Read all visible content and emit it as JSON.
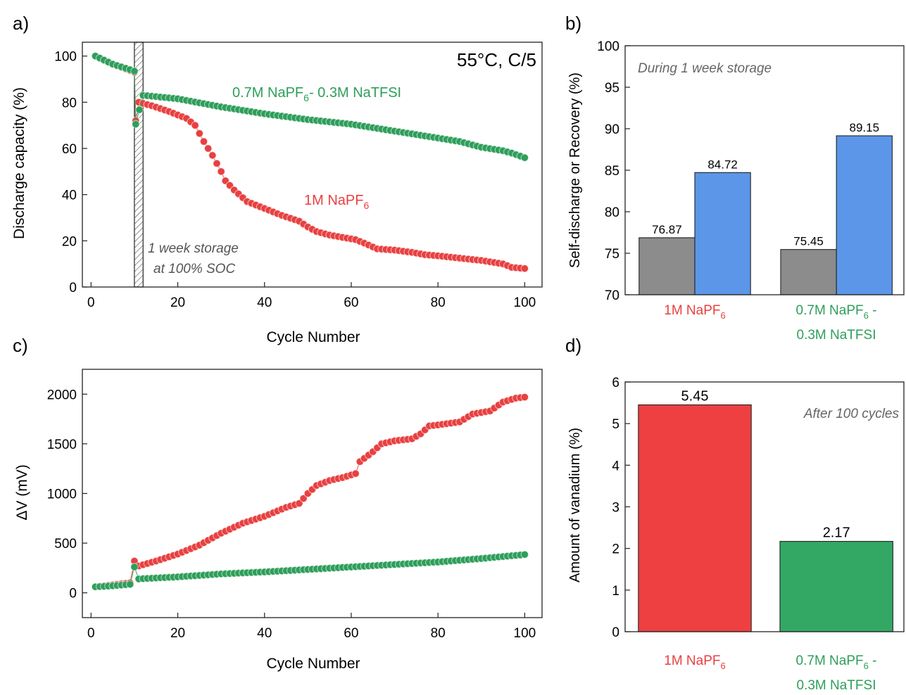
{
  "panels": {
    "a": {
      "letter": "a)",
      "condition": "55°C, C/5",
      "storage_line1": "1 week storage",
      "storage_line2": "at 100% SOC",
      "label_red": "1M NaPF",
      "label_red_sub": "6",
      "label_green": "0.7M NaPF",
      "label_green_sub": "6",
      "label_green_tail": "- 0.3M NaTFSI"
    },
    "b": {
      "letter": "b)",
      "note": "During 1 week  storage"
    },
    "c": {
      "letter": "c)"
    },
    "d": {
      "letter": "d)",
      "note": "After 100 cycles"
    }
  },
  "categories": {
    "red_main": "1M NaPF",
    "red_sub": "6",
    "green_main": "0.7M NaPF",
    "green_sub": "6",
    "green_tail": " -",
    "green_line2": "0.3M NaTFSI"
  },
  "colors": {
    "red": "#e84040",
    "green": "#2e9e5a",
    "gray": "#8c8c8c",
    "blue": "#5b96e8",
    "bar_red": "#ee4040",
    "bar_green": "#33a865"
  },
  "chart_data": [
    {
      "type": "scatter",
      "panel": "a",
      "xlabel": "Cycle Number",
      "ylabel": "Discharge capacity (%)",
      "xlim": [
        -2,
        104
      ],
      "ylim": [
        0,
        106
      ],
      "xticks": [
        0,
        20,
        40,
        60,
        80,
        100
      ],
      "yticks": [
        0,
        20,
        40,
        60,
        80,
        100
      ],
      "storage_window": [
        10,
        12
      ],
      "series": [
        {
          "name": "1M NaPF6",
          "color_key": "red",
          "points": [
            [
              1,
              100
            ],
            [
              5,
              96.5
            ],
            [
              10,
              93
            ],
            [
              10.3,
              72
            ],
            [
              11,
              80
            ],
            [
              14,
              78.5
            ],
            [
              18,
              76
            ],
            [
              22,
              73
            ],
            [
              24,
              70
            ],
            [
              26,
              63
            ],
            [
              28,
              57
            ],
            [
              30,
              50
            ],
            [
              31,
              46
            ],
            [
              33,
              42
            ],
            [
              36,
              37
            ],
            [
              40,
              34
            ],
            [
              44,
              31
            ],
            [
              48,
              28.5
            ],
            [
              50,
              26
            ],
            [
              52,
              24
            ],
            [
              55,
              22.5
            ],
            [
              58,
              21.5
            ],
            [
              61,
              20.5
            ],
            [
              63,
              19
            ],
            [
              66,
              16.5
            ],
            [
              70,
              16
            ],
            [
              74,
              15
            ],
            [
              77,
              14
            ],
            [
              80,
              13.5
            ],
            [
              85,
              12.5
            ],
            [
              90,
              11.5
            ],
            [
              95,
              10
            ],
            [
              97,
              8.5
            ],
            [
              100,
              8
            ]
          ]
        },
        {
          "name": "0.7M NaPF6- 0.3M NaTFSI",
          "color_key": "green",
          "points": [
            [
              1,
              100
            ],
            [
              5,
              96.5
            ],
            [
              10,
              93.5
            ],
            [
              10.3,
              70.5
            ],
            [
              12,
              83
            ],
            [
              20,
              81.5
            ],
            [
              30,
              78
            ],
            [
              40,
              75
            ],
            [
              50,
              72.5
            ],
            [
              60,
              70.5
            ],
            [
              65,
              69
            ],
            [
              70,
              67.5
            ],
            [
              80,
              64.5
            ],
            [
              85,
              63
            ],
            [
              90,
              60.5
            ],
            [
              95,
              59
            ],
            [
              97,
              58
            ],
            [
              100,
              56
            ]
          ]
        }
      ]
    },
    {
      "type": "bar",
      "panel": "b",
      "ylabel": "Self-discharge or Recovery (%)",
      "ylim": [
        70,
        100
      ],
      "yticks": [
        70,
        75,
        80,
        85,
        90,
        95,
        100
      ],
      "categories": [
        "1M NaPF6",
        "0.7M NaPF6 - 0.3M NaTFSI"
      ],
      "series": [
        {
          "color_key": "gray",
          "values": [
            76.87,
            75.45
          ],
          "labels": [
            "76.87",
            "75.45"
          ]
        },
        {
          "color_key": "blue",
          "values": [
            84.72,
            89.15
          ],
          "labels": [
            "84.72",
            "89.15"
          ]
        }
      ]
    },
    {
      "type": "scatter",
      "panel": "c",
      "xlabel": "Cycle Number",
      "ylabel": "ΔV (mV)",
      "xlim": [
        -2,
        104
      ],
      "ylim": [
        -250,
        2250
      ],
      "xticks": [
        0,
        20,
        40,
        60,
        80,
        100
      ],
      "yticks": [
        0,
        500,
        1000,
        1500,
        2000
      ],
      "series": [
        {
          "name": "1M NaPF6",
          "color_key": "red",
          "points": [
            [
              1,
              60
            ],
            [
              5,
              80
            ],
            [
              9,
              100
            ],
            [
              10,
              320
            ],
            [
              11,
              270
            ],
            [
              15,
              320
            ],
            [
              20,
              390
            ],
            [
              25,
              480
            ],
            [
              30,
              600
            ],
            [
              35,
              700
            ],
            [
              40,
              770
            ],
            [
              45,
              860
            ],
            [
              48,
              900
            ],
            [
              50,
              1000
            ],
            [
              52,
              1080
            ],
            [
              55,
              1130
            ],
            [
              58,
              1160
            ],
            [
              61,
              1200
            ],
            [
              62,
              1320
            ],
            [
              65,
              1420
            ],
            [
              67,
              1500
            ],
            [
              70,
              1530
            ],
            [
              74,
              1550
            ],
            [
              76,
              1600
            ],
            [
              78,
              1680
            ],
            [
              80,
              1690
            ],
            [
              85,
              1720
            ],
            [
              88,
              1800
            ],
            [
              92,
              1830
            ],
            [
              95,
              1920
            ],
            [
              98,
              1960
            ],
            [
              100,
              1970
            ]
          ]
        },
        {
          "name": "0.7M NaPF6- 0.3M NaTFSI",
          "color_key": "green",
          "points": [
            [
              1,
              60
            ],
            [
              5,
              70
            ],
            [
              9,
              85
            ],
            [
              10,
              260
            ],
            [
              11,
              140
            ],
            [
              20,
              160
            ],
            [
              30,
              190
            ],
            [
              40,
              210
            ],
            [
              50,
              235
            ],
            [
              60,
              260
            ],
            [
              70,
              285
            ],
            [
              80,
              310
            ],
            [
              90,
              345
            ],
            [
              100,
              385
            ]
          ]
        }
      ]
    },
    {
      "type": "bar",
      "panel": "d",
      "ylabel": "Amount of vanadium (%)",
      "ylim": [
        0,
        6
      ],
      "yticks": [
        0,
        1,
        2,
        3,
        4,
        5,
        6
      ],
      "categories": [
        "1M NaPF6",
        "0.7M NaPF6 - 0.3M NaTFSI"
      ],
      "series": [
        {
          "color_keys": [
            "bar_red",
            "bar_green"
          ],
          "values": [
            5.45,
            2.17
          ],
          "labels": [
            "5.45",
            "2.17"
          ]
        }
      ]
    }
  ]
}
